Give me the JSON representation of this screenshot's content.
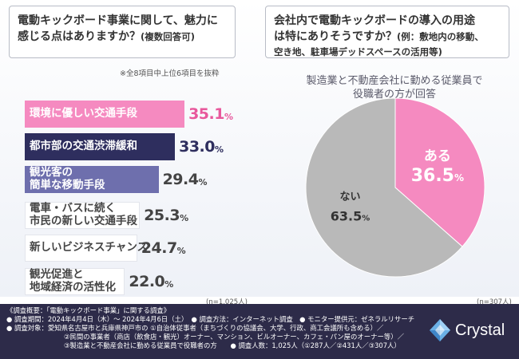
{
  "left": {
    "question_line1": "電動キックボード事業に関して、魅力に",
    "question_line2": "感じる点はありますか？",
    "question_suffix": "(複数回答可)",
    "note": "※全8項目中上位6項目を抜粋",
    "n_label": "(n=1,025人)"
  },
  "right": {
    "question_line1": "会社内で電動キックボードの導入の用途",
    "question_line2": "は特にありそうですか？",
    "question_suffix_1": "(例：敷地内の移動、",
    "question_line3": "空き地、駐車場デッドスペースの活用等)",
    "subtitle_line1": "製造業と不動産会社に勤める従業員で",
    "subtitle_line2": "役職者の方が回答",
    "n_label": "(n=307人)"
  },
  "colors": {
    "pink": "#f58ac0",
    "navy": "#2e2e5e",
    "gray": "#b9b9b9",
    "lavender": "#6e6fad"
  },
  "chart_data": [
    {
      "type": "bar",
      "orientation": "horizontal",
      "categories": [
        "環境に優しい交通手段",
        "都市部の交通渋滞緩和",
        "観光客の\n簡単な移動手段",
        "電車・バスに続く\n市民の新しい交通手段",
        "新しいビジネスチャンス",
        "観光促進と\n地域経済の活性化"
      ],
      "values": [
        35.1,
        33.0,
        29.4,
        25.3,
        24.7,
        22.0
      ],
      "value_labels": [
        "35.1",
        "33.0",
        "29.4",
        "25.3",
        "24.7",
        "22.0"
      ],
      "unit": "%",
      "title": "電動キックボード事業に関して、魅力に感じる点はありますか？(複数回答可)"
    },
    {
      "type": "pie",
      "labels": [
        "ある",
        "ない"
      ],
      "values": [
        36.5,
        63.5
      ],
      "value_labels": [
        "36.5",
        "63.5"
      ],
      "unit": "%",
      "title": "会社内で電動キックボードの導入の用途は特にありそうですか？"
    }
  ],
  "footer": {
    "line1": "《調査概要：「電動キックボード事業」に関する調査》",
    "line2": "● 調査期間：2024年4月4日（木）～ 2024年4月6日（土）　● 調査方法：インターネット調査　● モニター提供元：ゼネラルリサーチ",
    "line3": "● 調査対象：愛知県名古屋市と兵庫県神戸市の ①自治体従事者（まちづくりの協議会、大学、行政、商工会議所も含める）／",
    "line4": "②民間の事業者（商店（飲食店・観光）オーナー、マンション、ビルオーナー、カフェ・パン屋のオーナー等）／",
    "line5": "③製造業と不動産会社に勤める従業員で役職者の方　　● 調査人数：1,025人（①287人／②431人／③307人）"
  },
  "brand": {
    "name": "Crystal"
  }
}
